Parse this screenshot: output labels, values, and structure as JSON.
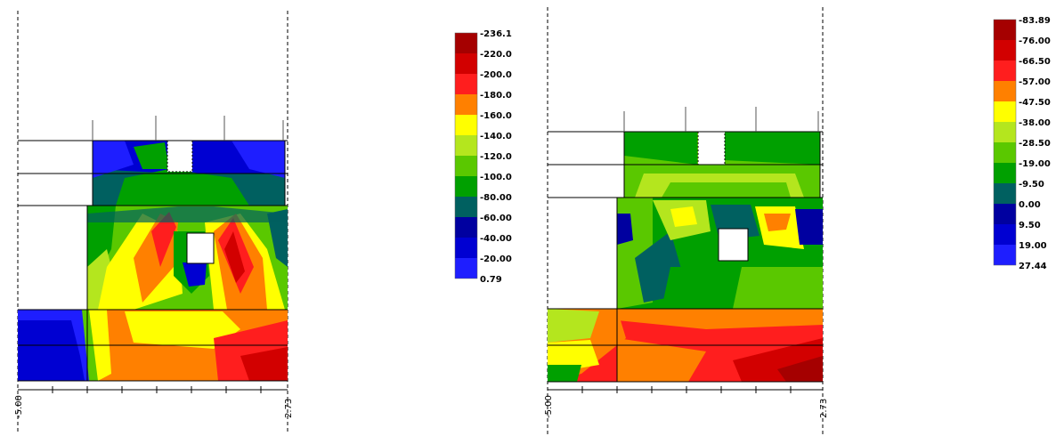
{
  "panels": [
    {
      "axis": {
        "left_label": "-5.00",
        "right_label": "2.73"
      },
      "legend": {
        "values": [
          "-236.1",
          "-220.0",
          "-200.0",
          "-180.0",
          "-160.0",
          "-140.0",
          "-120.0",
          "-100.0",
          "-80.00",
          "-60.00",
          "-40.00",
          "-20.00",
          "0.79"
        ],
        "colors": [
          "#a50000",
          "#d20000",
          "#ff1e1e",
          "#ff8000",
          "#ffff00",
          "#b4e61e",
          "#5ac800",
          "#00a000",
          "#006060",
          "#0000a0",
          "#0000d2",
          "#1e1eff"
        ]
      }
    },
    {
      "axis": {
        "left_label": "-5.00",
        "right_label": "2.73"
      },
      "legend": {
        "values": [
          "-83.89",
          "-76.00",
          "-66.50",
          "-57.00",
          "-47.50",
          "-38.00",
          "-28.50",
          "-19.00",
          "-9.50",
          "0.00",
          "9.50",
          "19.00",
          "27.44"
        ],
        "colors": [
          "#a50000",
          "#d20000",
          "#ff1e1e",
          "#ff8000",
          "#ffff00",
          "#b4e61e",
          "#5ac800",
          "#00a000",
          "#006060",
          "#0000a0",
          "#0000d2",
          "#1e1eff"
        ]
      }
    }
  ]
}
